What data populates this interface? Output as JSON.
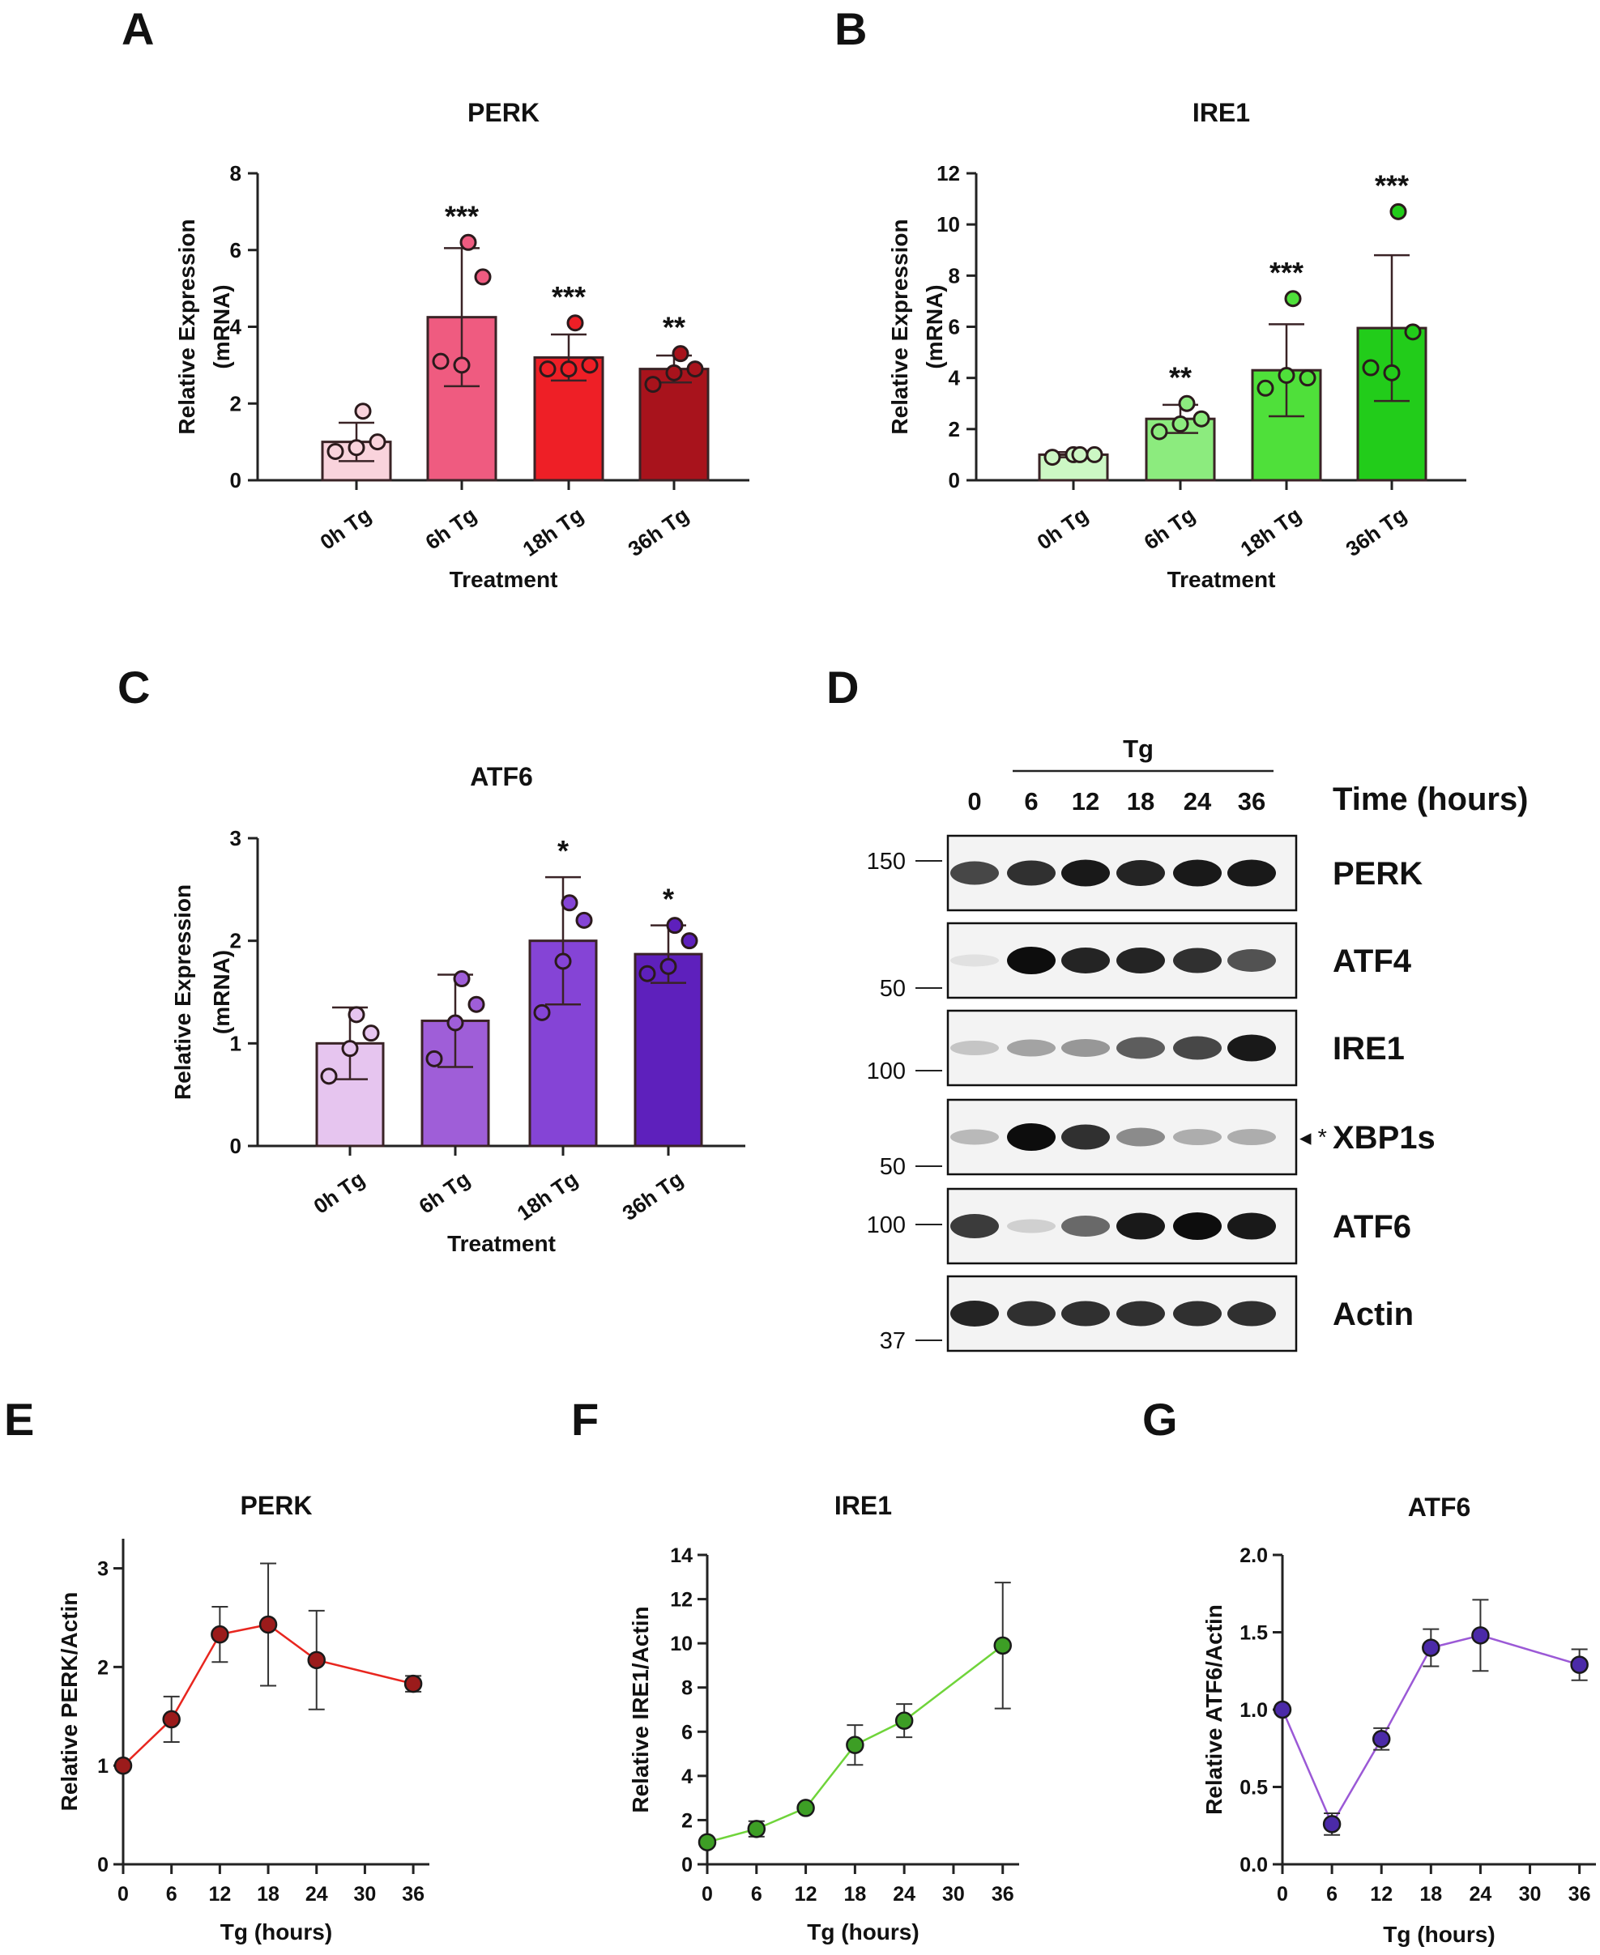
{
  "panels": {
    "A": "A",
    "B": "B",
    "C": "C",
    "D": "D",
    "E": "E",
    "F": "F",
    "G": "G"
  },
  "chart_data": [
    {
      "id": "A",
      "type": "bar",
      "title": "PERK",
      "xlabel": "Treatment",
      "ylabel": "Relative  Expression",
      "ylabel2": "(mRNA)",
      "categories": [
        "0h Tg",
        "6h Tg",
        "18h Tg",
        "36h Tg"
      ],
      "values": [
        1.0,
        4.25,
        3.2,
        2.9
      ],
      "errors": [
        0.5,
        1.8,
        0.6,
        0.35
      ],
      "points": [
        [
          0.75,
          0.85,
          1.0,
          1.8
        ],
        [
          3.1,
          3.0,
          5.3,
          6.2
        ],
        [
          2.9,
          2.9,
          3.0,
          4.1
        ],
        [
          2.5,
          2.8,
          2.9,
          3.3
        ]
      ],
      "stars": [
        "",
        "***",
        "***",
        "**"
      ],
      "ylim": [
        0,
        8
      ],
      "yticks": [
        0,
        2,
        4,
        6,
        8
      ],
      "colors": [
        "#f9d3dc",
        "#ef5b80",
        "#ee1f26",
        "#a8131c"
      ]
    },
    {
      "id": "B",
      "type": "bar",
      "title": "IRE1",
      "xlabel": "Treatment",
      "ylabel": "Relative  Expression",
      "ylabel2": "(mRNA)",
      "categories": [
        "0h Tg",
        "6h Tg",
        "18h Tg",
        "36h Tg"
      ],
      "values": [
        1.0,
        2.4,
        4.3,
        5.95
      ],
      "errors": [
        0.1,
        0.55,
        1.8,
        2.85
      ],
      "points": [
        [
          0.9,
          1.0,
          1.0,
          1.0
        ],
        [
          1.9,
          2.2,
          2.4,
          3.0
        ],
        [
          3.6,
          4.1,
          4.0,
          7.1
        ],
        [
          4.4,
          4.2,
          5.8,
          10.5
        ]
      ],
      "stars": [
        "",
        "**",
        "***",
        "***"
      ],
      "ylim": [
        0,
        12
      ],
      "yticks": [
        0,
        2,
        4,
        6,
        8,
        10,
        12
      ],
      "colors": [
        "#ccf7c4",
        "#8ceb7e",
        "#4fe03a",
        "#22cc1a"
      ]
    },
    {
      "id": "C",
      "type": "bar",
      "title": "ATF6",
      "xlabel": "Treatment",
      "ylabel": "Relative  Expression",
      "ylabel2": "(mRNA)",
      "categories": [
        "0h Tg",
        "6h Tg",
        "18h Tg",
        "36h Tg"
      ],
      "values": [
        1.0,
        1.22,
        2.0,
        1.87
      ],
      "errors": [
        0.35,
        0.45,
        0.62,
        0.28
      ],
      "points": [
        [
          0.68,
          0.95,
          1.1,
          1.28
        ],
        [
          0.85,
          1.2,
          1.38,
          1.63
        ],
        [
          1.3,
          1.8,
          2.2,
          2.37
        ],
        [
          1.68,
          1.75,
          2.0,
          2.15
        ]
      ],
      "stars": [
        "",
        "",
        "*",
        "*"
      ],
      "ylim": [
        0,
        3
      ],
      "yticks": [
        0,
        1,
        2,
        3
      ],
      "colors": [
        "#e6c5ef",
        "#9f5ed8",
        "#8544d6",
        "#5e20bc"
      ]
    },
    {
      "id": "E",
      "type": "line",
      "title": "PERK",
      "xlabel": "Tg (hours)",
      "ylabel": "Relative PERK/Actin",
      "x": [
        0,
        6,
        12,
        18,
        24,
        36
      ],
      "values": [
        1.0,
        1.47,
        2.33,
        2.43,
        2.07,
        1.83
      ],
      "errors": [
        0,
        0.23,
        0.28,
        0.62,
        0.5,
        0.08
      ],
      "xlim": [
        0,
        38
      ],
      "xticks": [
        0,
        6,
        12,
        18,
        24,
        30,
        36
      ],
      "ylim": [
        0,
        3.3
      ],
      "yticks": [
        0,
        1,
        2,
        3
      ],
      "line_color": "#e8261f",
      "marker_color": "#9b1b1b"
    },
    {
      "id": "F",
      "type": "line",
      "title": "IRE1",
      "xlabel": "Tg (hours)",
      "ylabel": "Relative IRE1/Actin",
      "x": [
        0,
        6,
        12,
        18,
        24,
        36
      ],
      "values": [
        1.0,
        1.6,
        2.55,
        5.4,
        6.5,
        9.9
      ],
      "errors": [
        0,
        0.35,
        0.1,
        0.9,
        0.75,
        2.85
      ],
      "xlim": [
        0,
        38
      ],
      "xticks": [
        0,
        6,
        12,
        18,
        24,
        30,
        36
      ],
      "ylim": [
        0,
        14
      ],
      "yticks": [
        0,
        2,
        4,
        6,
        8,
        10,
        12,
        14
      ],
      "line_color": "#6fd43a",
      "marker_color": "#3d9e25"
    },
    {
      "id": "G",
      "type": "line",
      "title": "ATF6",
      "xlabel": "Tg (hours)",
      "ylabel": "Relative ATF6/Actin",
      "x": [
        0,
        6,
        12,
        18,
        24,
        36
      ],
      "values": [
        1.0,
        0.26,
        0.81,
        1.4,
        1.48,
        1.29
      ],
      "errors": [
        0,
        0.07,
        0.07,
        0.12,
        0.23,
        0.1
      ],
      "xlim": [
        0,
        38
      ],
      "xticks": [
        0,
        6,
        12,
        18,
        24,
        30,
        36
      ],
      "ylim": [
        0,
        2.0
      ],
      "yticks": [
        0,
        0.5,
        1.0,
        1.5,
        2.0
      ],
      "ytick_labels": [
        "0.0",
        "0.5",
        "1.0",
        "1.5",
        "2.0"
      ],
      "line_color": "#9b59d6",
      "marker_color": "#4b2aa8"
    }
  ],
  "blot": {
    "treatment_label": "Tg",
    "time_label": "Time (hours)",
    "lanes": [
      "0",
      "6",
      "12",
      "18",
      "24",
      "36"
    ],
    "rows": [
      {
        "label": "PERK",
        "mw": "150",
        "intensity": [
          0.75,
          0.85,
          0.95,
          0.9,
          0.95,
          0.95
        ]
      },
      {
        "label": "ATF4",
        "mw": "50",
        "intensity": [
          0.05,
          1.0,
          0.9,
          0.9,
          0.85,
          0.7
        ]
      },
      {
        "label": "IRE1",
        "mw": "100",
        "intensity": [
          0.2,
          0.35,
          0.4,
          0.65,
          0.75,
          0.95
        ]
      },
      {
        "label": "XBP1s",
        "mw": "50",
        "intensity": [
          0.25,
          1.0,
          0.85,
          0.45,
          0.3,
          0.3
        ],
        "marks": "◂ *"
      },
      {
        "label": "ATF6",
        "mw": "100",
        "intensity": [
          0.8,
          0.15,
          0.6,
          0.95,
          1.0,
          0.95
        ]
      },
      {
        "label": "Actin",
        "mw": "37",
        "intensity": [
          0.9,
          0.85,
          0.85,
          0.85,
          0.85,
          0.85
        ]
      }
    ]
  }
}
